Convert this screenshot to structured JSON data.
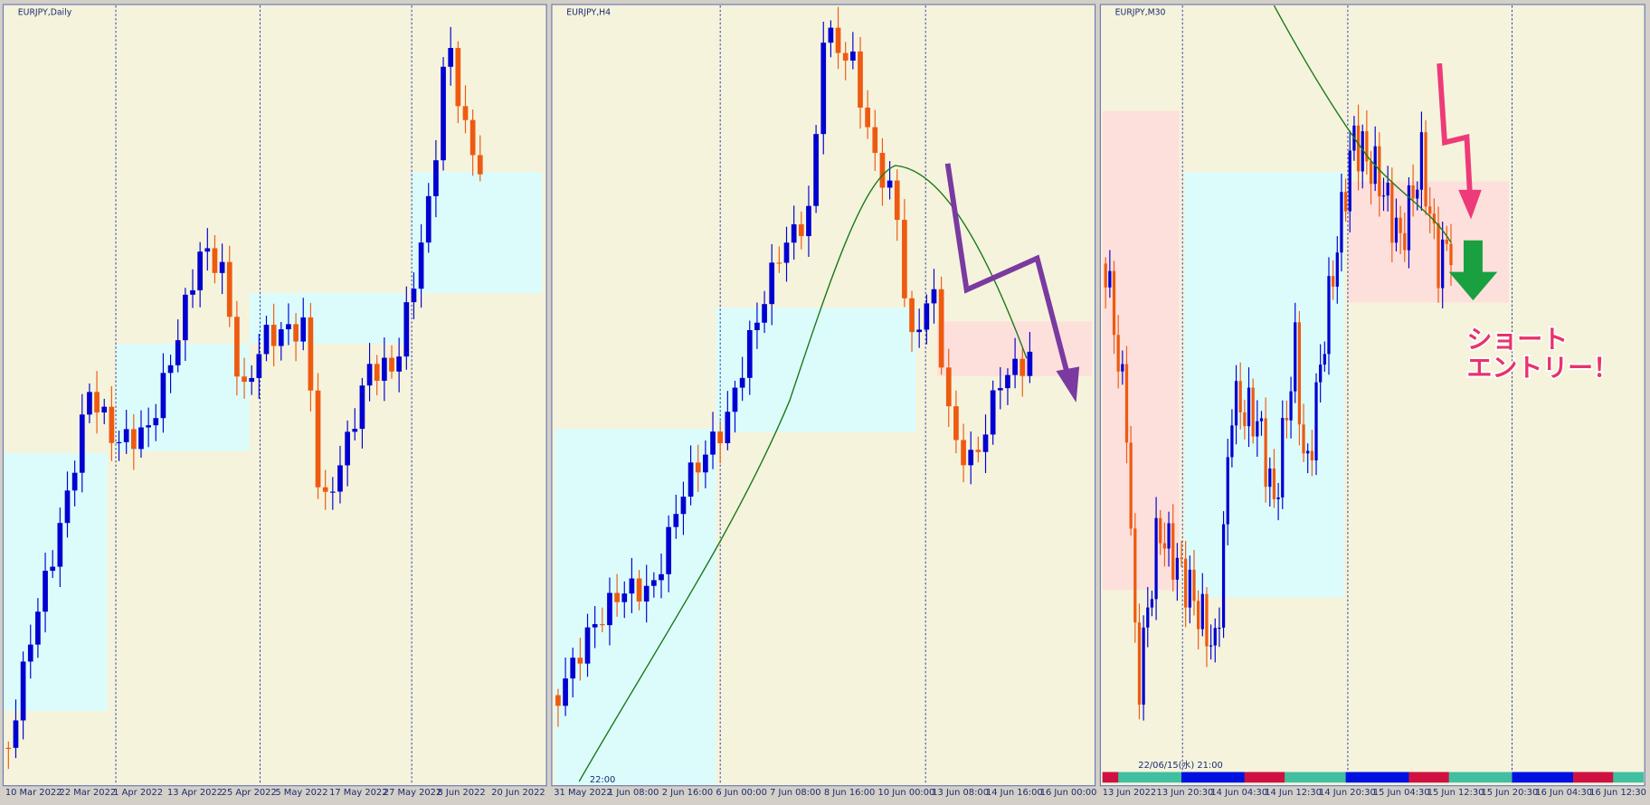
{
  "panels": [
    {
      "title": "EURJPY,Daily",
      "time_labels": [
        "10 Mar 2022",
        "22 Mar 2022",
        "1 Apr 2022",
        "13 Apr 2022",
        "25 Apr 2022",
        "5 May 2022",
        "17 May 2022",
        "27 May 2022",
        "8 Jun 2022",
        "20 Jun 2022"
      ]
    },
    {
      "title": "EURJPY,H4",
      "time_labels": [
        "31 May 2022",
        "1 Jun 08:00",
        "2 Jun 16:00",
        "6 Jun 00:00",
        "7 Jun 08:00",
        "8 Jun 16:00",
        "10 Jun 00:00",
        "13 Jun 08:00",
        "14 Jun 16:00",
        "16 Jun 00:00"
      ],
      "cursor_label": "22:00"
    },
    {
      "title": "EURJPY,M30",
      "time_labels": [
        "13 Jun 2022",
        "13 Jun 20:30",
        "14 Jun 04:30",
        "14 Jun 12:30",
        "14 Jun 20:30",
        "15 Jun 04:30",
        "15 Jun 12:30",
        "15 Jun 20:30",
        "16 Jun 04:30",
        "16 Jun 12:30"
      ],
      "cursor_label": "22/06/15(水) 21:00"
    }
  ],
  "annotation": {
    "lines": [
      "ショート",
      "エントリー！"
    ]
  }
}
